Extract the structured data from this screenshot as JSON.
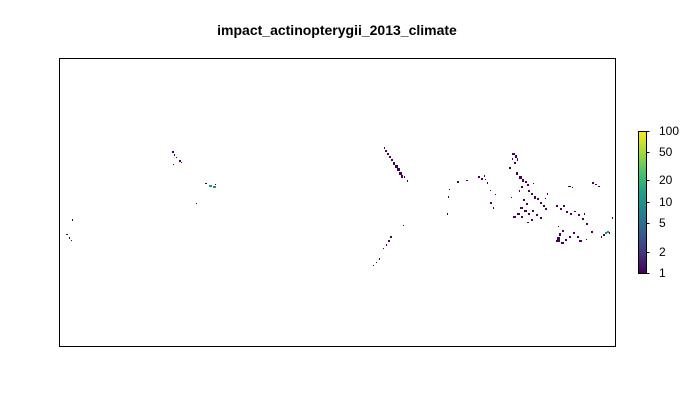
{
  "title": "impact_actinopterygii_2013_climate",
  "legend": {
    "ticks": [
      "100",
      "50",
      "20",
      "10",
      "5",
      "2",
      "1"
    ],
    "tick_values": [
      100,
      50,
      20,
      10,
      5,
      2,
      1
    ],
    "scale": "log",
    "range": [
      1,
      100
    ],
    "palette": [
      "#440154",
      "#46327e",
      "#365c8d",
      "#277f8e",
      "#1fa187",
      "#4ac16d",
      "#a0da39",
      "#fde725"
    ]
  },
  "colors": {
    "low_value": "#440154",
    "mid_value": "#21918c",
    "frame": "#000000",
    "background": "#ffffff"
  }
}
